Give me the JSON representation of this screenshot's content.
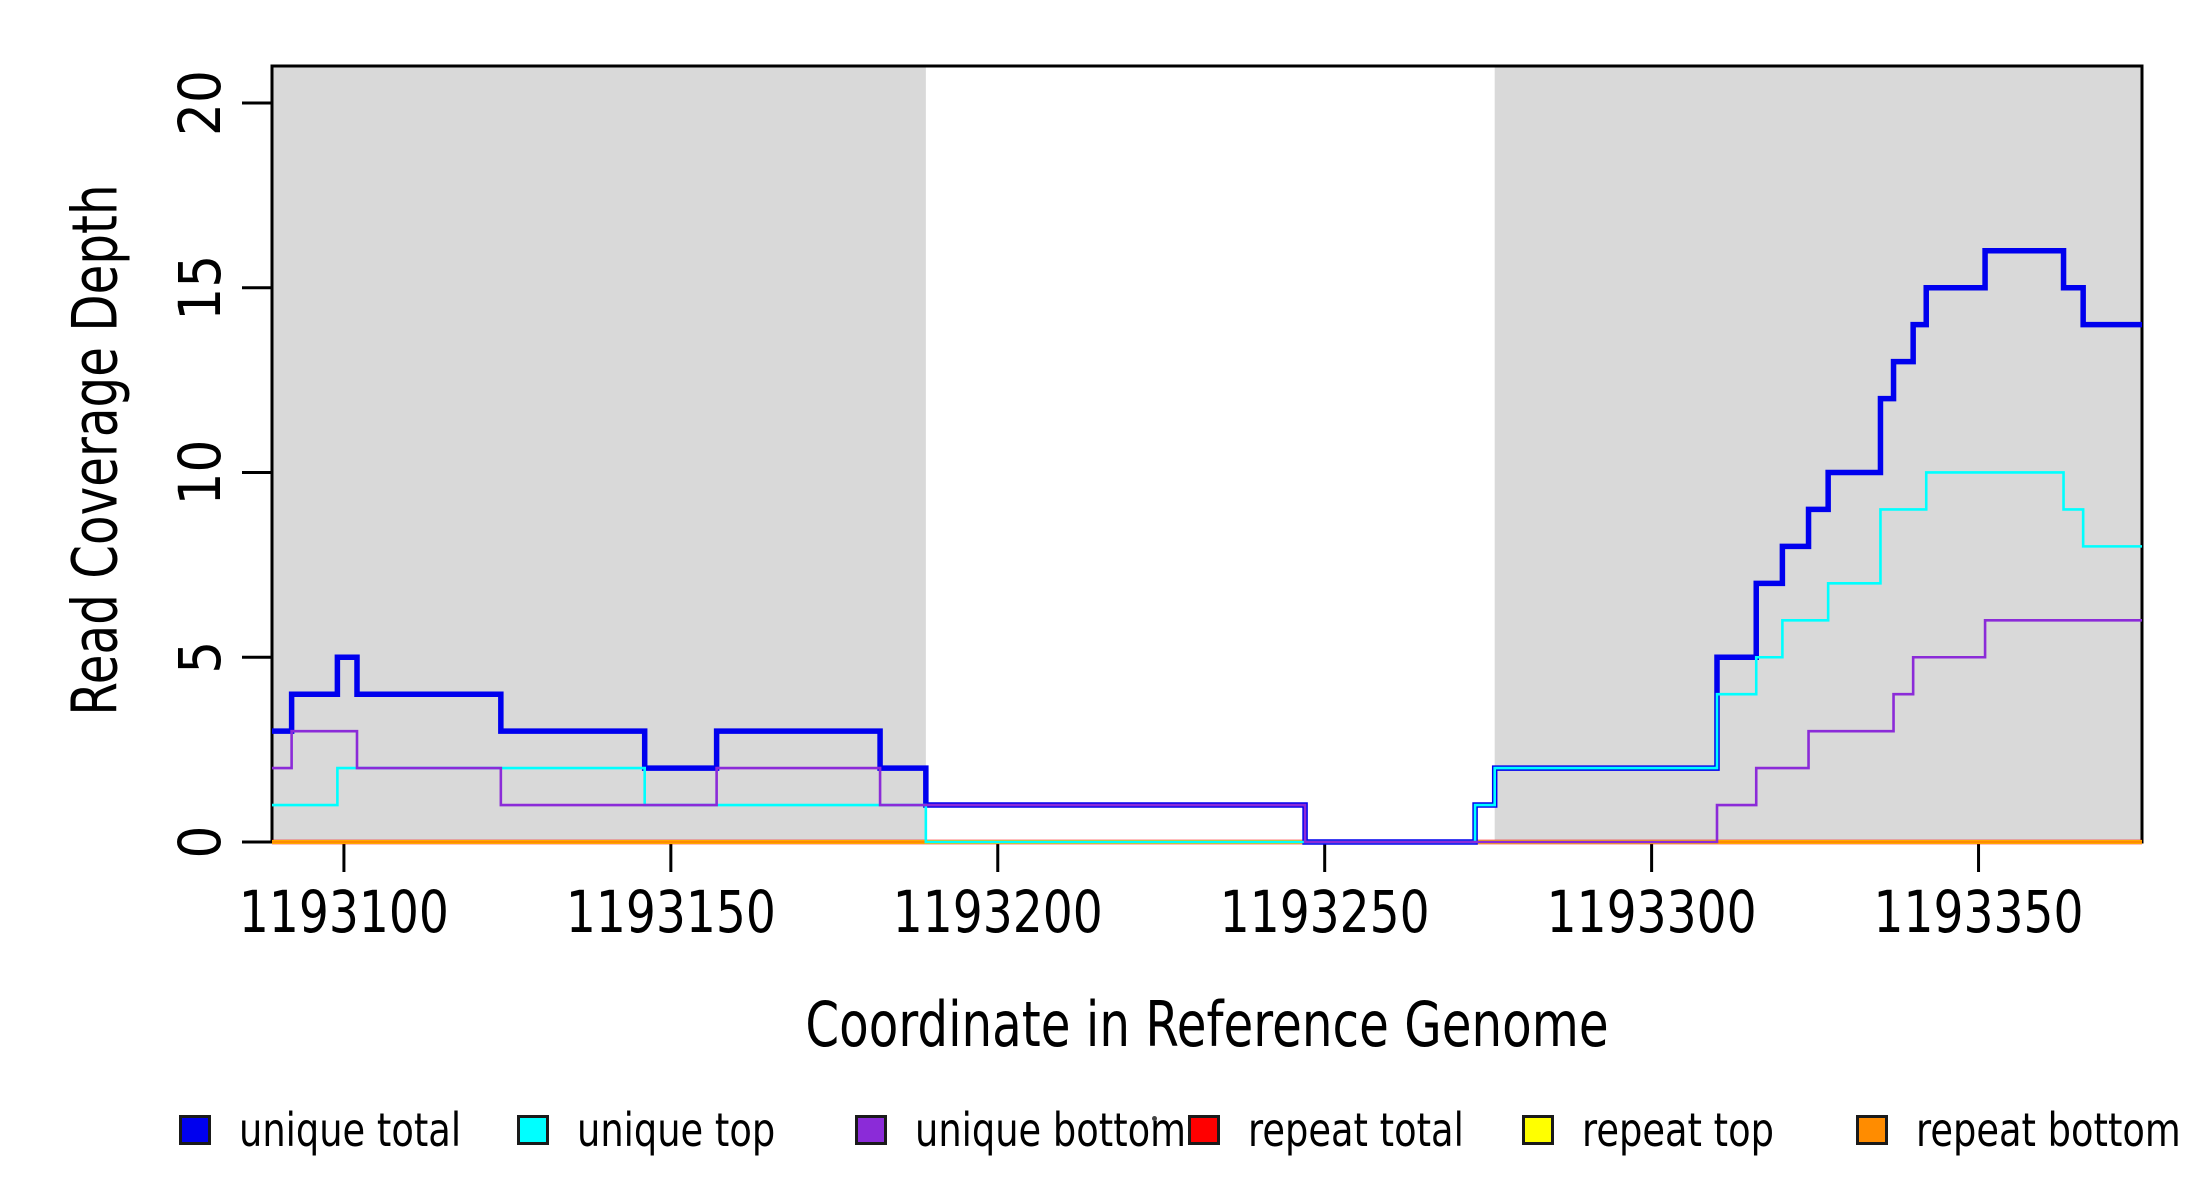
{
  "figure": {
    "x_axis_label": "Coordinate in Reference Genome",
    "y_axis_label": "Read Coverage Depth"
  },
  "colors": {
    "background": "#ffffff",
    "shaded_region": "#d9d9d9",
    "axis": "#000000",
    "unique_total": "#0000ee",
    "unique_top": "#00ffff",
    "unique_bottom": "#8b2bd8",
    "repeat_total": "#ff0000",
    "repeat_top": "#ffff00",
    "repeat_bottom": "#ff8c00"
  },
  "chart_data": {
    "type": "line",
    "subtype": "step-after",
    "title": "",
    "xlabel": "Coordinate in Reference Genome",
    "ylabel": "Read Coverage Depth",
    "xlim": [
      1193089,
      1193375
    ],
    "ylim": [
      0,
      21
    ],
    "x_ticks": [
      1193100,
      1193150,
      1193200,
      1193250,
      1193300,
      1193350
    ],
    "y_ticks": [
      0,
      5,
      10,
      15,
      20
    ],
    "grid": false,
    "legend_position": "bottom",
    "shaded_regions": [
      {
        "name": "left-shaded-region",
        "x0": 1193089,
        "x1": 1193189
      },
      {
        "name": "right-shaded-region",
        "x0": 1193276,
        "x1": 1193375
      }
    ],
    "series": [
      {
        "name": "repeat total",
        "color_key": "repeat_total",
        "line_width": 4.5,
        "points": [
          [
            1193089,
            0
          ],
          [
            1193375,
            0
          ]
        ]
      },
      {
        "name": "repeat top",
        "color_key": "repeat_top",
        "line_width": 4,
        "points": [
          [
            1193089,
            0
          ],
          [
            1193375,
            0
          ]
        ]
      },
      {
        "name": "repeat bottom",
        "color_key": "repeat_bottom",
        "line_width": 3.5,
        "points": [
          [
            1193089,
            0
          ],
          [
            1193375,
            0
          ]
        ]
      },
      {
        "name": "unique total",
        "color_key": "unique_total",
        "line_width": 5.5,
        "points": [
          [
            1193089,
            3
          ],
          [
            1193092,
            4
          ],
          [
            1193099,
            5
          ],
          [
            1193102,
            4
          ],
          [
            1193124,
            3
          ],
          [
            1193146,
            2
          ],
          [
            1193157,
            3
          ],
          [
            1193182,
            2
          ],
          [
            1193189,
            1
          ],
          [
            1193247,
            0
          ],
          [
            1193273,
            1
          ],
          [
            1193276,
            2
          ],
          [
            1193310,
            5
          ],
          [
            1193316,
            7
          ],
          [
            1193320,
            8
          ],
          [
            1193324,
            9
          ],
          [
            1193327,
            10
          ],
          [
            1193335,
            12
          ],
          [
            1193337,
            13
          ],
          [
            1193340,
            14
          ],
          [
            1193342,
            15
          ],
          [
            1193351,
            16
          ],
          [
            1193363,
            15
          ],
          [
            1193366,
            14
          ],
          [
            1193375,
            14
          ]
        ]
      },
      {
        "name": "unique top",
        "color_key": "unique_top",
        "line_width": 2.6,
        "points": [
          [
            1193089,
            1
          ],
          [
            1193099,
            2
          ],
          [
            1193146,
            1
          ],
          [
            1193189,
            0
          ],
          [
            1193273,
            1
          ],
          [
            1193276,
            2
          ],
          [
            1193310,
            4
          ],
          [
            1193316,
            5
          ],
          [
            1193320,
            6
          ],
          [
            1193327,
            7
          ],
          [
            1193335,
            9
          ],
          [
            1193342,
            10
          ],
          [
            1193363,
            9
          ],
          [
            1193366,
            8
          ],
          [
            1193375,
            8
          ]
        ]
      },
      {
        "name": "unique bottom",
        "color_key": "unique_bottom",
        "line_width": 2.6,
        "points": [
          [
            1193089,
            2
          ],
          [
            1193092,
            3
          ],
          [
            1193102,
            2
          ],
          [
            1193124,
            1
          ],
          [
            1193157,
            2
          ],
          [
            1193182,
            1
          ],
          [
            1193247,
            0
          ],
          [
            1193310,
            1
          ],
          [
            1193316,
            2
          ],
          [
            1193324,
            3
          ],
          [
            1193337,
            4
          ],
          [
            1193340,
            5
          ],
          [
            1193351,
            6
          ],
          [
            1193375,
            6
          ]
        ]
      }
    ],
    "legend": [
      {
        "label": "unique total",
        "color_key": "unique_total"
      },
      {
        "label": "unique top",
        "color_key": "unique_top"
      },
      {
        "label": "unique bottom",
        "color_key": "unique_bottom"
      },
      {
        "label": "repeat total",
        "color_key": "repeat_total"
      },
      {
        "label": "repeat top",
        "color_key": "repeat_top"
      },
      {
        "label": "repeat bottom",
        "color_key": "repeat_bottom"
      }
    ]
  }
}
